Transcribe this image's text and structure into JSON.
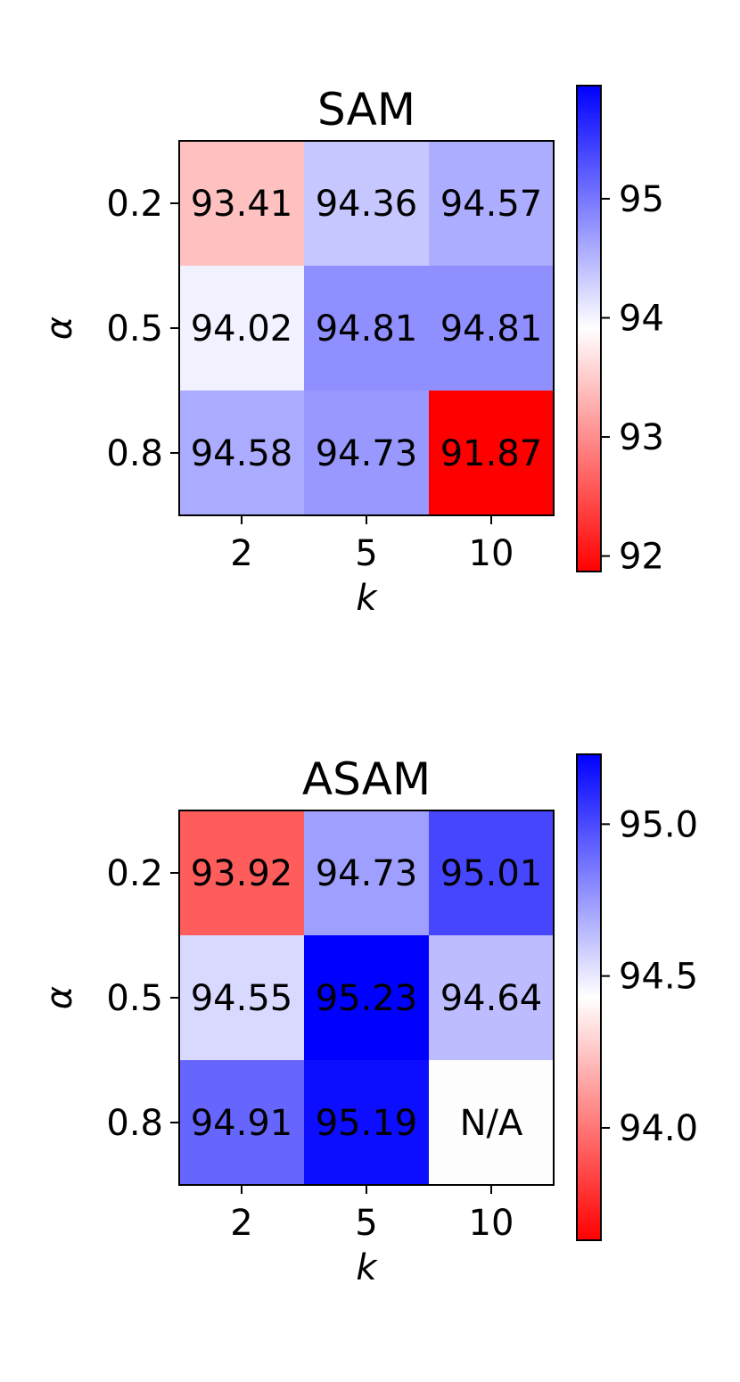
{
  "chart_data": [
    {
      "type": "heatmap",
      "title": "SAM",
      "xlabel": "k",
      "ylabel": "α",
      "x_categories": [
        "2",
        "5",
        "10"
      ],
      "y_categories": [
        "0.2",
        "0.5",
        "0.8"
      ],
      "values": [
        [
          93.41,
          94.36,
          94.57
        ],
        [
          94.02,
          94.81,
          94.81
        ],
        [
          94.58,
          94.73,
          91.87
        ]
      ],
      "labels": [
        [
          "93.41",
          "94.36",
          "94.57"
        ],
        [
          "94.02",
          "94.81",
          "94.81"
        ],
        [
          "94.58",
          "94.73",
          "91.87"
        ]
      ],
      "colormap": "bwr_r",
      "low_color": "#ff0000",
      "mid_color": "#ffffff",
      "high_color": "#0000ff",
      "vmin": 91.87,
      "vmax": 95.95,
      "colorbar": {
        "ticks": [
          92,
          93,
          94,
          95
        ],
        "tick_labels": [
          "92",
          "93",
          "94",
          "95"
        ]
      }
    },
    {
      "type": "heatmap",
      "title": "ASAM",
      "xlabel": "k",
      "ylabel": "α",
      "x_categories": [
        "2",
        "5",
        "10"
      ],
      "y_categories": [
        "0.2",
        "0.5",
        "0.8"
      ],
      "values": [
        [
          93.92,
          94.73,
          95.01
        ],
        [
          94.55,
          95.23,
          94.64
        ],
        [
          94.91,
          95.19,
          null
        ]
      ],
      "labels": [
        [
          "93.92",
          "94.73",
          "95.01"
        ],
        [
          "94.55",
          "95.23",
          "94.64"
        ],
        [
          "94.91",
          "95.19",
          "N/A"
        ]
      ],
      "na_color": "#fdfdfd",
      "colormap": "bwr_r",
      "low_color": "#ff0000",
      "mid_color": "#ffffff",
      "high_color": "#0000ff",
      "vmin": 93.63,
      "vmax": 95.23,
      "colorbar": {
        "ticks": [
          94.0,
          94.5,
          95.0
        ],
        "tick_labels": [
          "94.0",
          "94.5",
          "95.0"
        ]
      }
    }
  ]
}
